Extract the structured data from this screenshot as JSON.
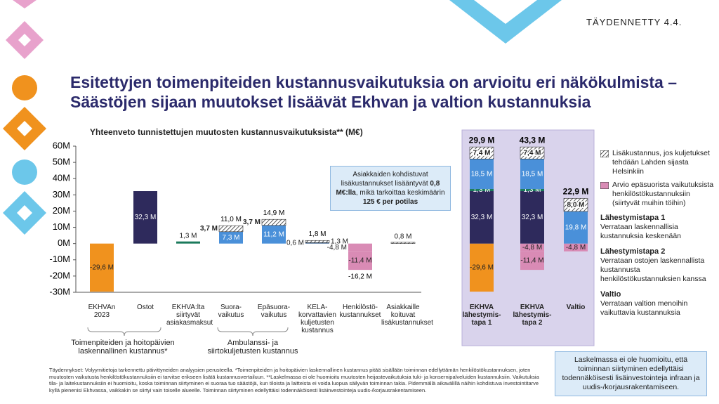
{
  "header": {
    "stamp": "TÄYDENNETTY 4.4.",
    "title": [
      "Esitettyjen toimenpiteiden kustannusvaikutuksia on arvioitu eri näkökulmista –",
      "Säästöjen sijaan muutokset lisäävät Ekhvan ja valtion kustannuksia"
    ]
  },
  "chart_data": {
    "type": "bar",
    "title": "Yhteenveto tunnistettujen muutosten kustannusvaikutuksista** (M€)",
    "ylim": [
      -30,
      60
    ],
    "yticks": [
      {
        "value": -30,
        "label": "-30M"
      },
      {
        "value": -20,
        "label": "-20M"
      },
      {
        "value": -10,
        "label": "-10M"
      },
      {
        "value": 0,
        "label": "0M"
      },
      {
        "value": 10,
        "label": "10M"
      },
      {
        "value": 20,
        "label": "20M"
      },
      {
        "value": 30,
        "label": "30M"
      },
      {
        "value": 40,
        "label": "40M"
      },
      {
        "value": 50,
        "label": "50M"
      },
      {
        "value": 60,
        "label": "60M"
      }
    ],
    "grid": false,
    "bars": [
      {
        "category": "EKHVAn 2023",
        "segments": [
          {
            "value": -29.6,
            "value_label": "-29,6 M",
            "color": "#f0921e"
          }
        ]
      },
      {
        "category": "Ostot",
        "segments": [
          {
            "value": 32.3,
            "value_label": "32,3 M",
            "color": "#2e2a5c"
          }
        ]
      },
      {
        "category": "EKHVA:lta siirtyvät asiakasmaksut",
        "segments": [
          {
            "value": 1.3,
            "value_label": "1,3 M",
            "color": "#1b7a5c"
          }
        ]
      },
      {
        "category": "Suora-vaikutus",
        "segments": [
          {
            "value": 7.3,
            "value_label": "7,3 M",
            "color": "#4a90d9"
          },
          {
            "value": 3.7,
            "value_label": "3,7 M",
            "hatched": true
          }
        ],
        "total": 11.0,
        "total_label": "11,0 M"
      },
      {
        "category": "Epäsuora-vaikutus",
        "segments": [
          {
            "value": 11.2,
            "value_label": "11,2 M",
            "color": "#4a90d9"
          },
          {
            "value": 3.7,
            "value_label": "3,7 M",
            "hatched": true
          }
        ],
        "total": 14.9,
        "total_label": "14,9 M"
      },
      {
        "category": "KELA-korvattavien kuljetusten kustannus",
        "segments": [
          {
            "value": 0.6,
            "value_label": "0,6 M",
            "color": "#3b5f8a"
          },
          {
            "value": 1.3,
            "value_label": "1,3 M",
            "hatched": true
          }
        ],
        "total": 1.8,
        "total_label": "1,8 M"
      },
      {
        "category": "Henkilöstö-kustannukset",
        "segments": [
          {
            "value": -4.8,
            "value_label": "-4,8 M",
            "color": "#d98bb5"
          },
          {
            "value": -11.4,
            "value_label": "-11,4 M",
            "color": "#d98bb5"
          }
        ],
        "total": -16.2,
        "total_label": "-16,2 M"
      },
      {
        "category": "Asiakkaille koituvat lisäkustannukset",
        "segments": [
          {
            "value": 0.8,
            "value_label": "0,8 M",
            "hatched": true
          }
        ]
      },
      {
        "category": "EKHVA lähestymis-tapa 1",
        "segments": [
          {
            "value": -29.6,
            "value_label": "-29,6 M",
            "color": "#f0921e"
          },
          {
            "value": 32.3,
            "value_label": "32,3 M",
            "color": "#2e2a5c"
          },
          {
            "value": 1.3,
            "value_label": "1,3 M",
            "color": "#1b7a5c"
          },
          {
            "value": 18.5,
            "value_label": "18,5 M",
            "color": "#4a90d9"
          },
          {
            "value": 7.4,
            "value_label": "7,4 M",
            "hatched": true
          }
        ],
        "total": 29.9,
        "total_label": "29,9 M"
      },
      {
        "category": "EKHVA lähestymis-tapa 2",
        "segments": [
          {
            "value": -4.8,
            "value_label": "-4,8 M",
            "color": "#d98bb5"
          },
          {
            "value": -11.4,
            "value_label": "-11,4 M",
            "color": "#d98bb5"
          },
          {
            "value": 32.3,
            "value_label": "32,3 M",
            "color": "#2e2a5c"
          },
          {
            "value": 1.3,
            "value_label": "1,3 M",
            "color": "#1b7a5c"
          },
          {
            "value": 18.5,
            "value_label": "18,5 M",
            "color": "#4a90d9"
          },
          {
            "value": 7.4,
            "value_label": "7,4 M",
            "hatched": true
          }
        ],
        "total": 43.3,
        "total_label": "43,3 M"
      },
      {
        "category": "Valtio",
        "segments": [
          {
            "value": -4.8,
            "value_label": "-4,8 M",
            "color": "#d98bb5"
          },
          {
            "value": 19.8,
            "value_label": "19,8 M",
            "color": "#4a90d9"
          },
          {
            "value": 8.0,
            "value_label": "8,0 M",
            "hatched": true
          }
        ],
        "total": 22.9,
        "total_label": "22,9 M"
      }
    ],
    "groups": [
      "Toimenpiteiden ja hoitopäivien laskennallinen kustannus*",
      "Ambulanssi- ja siirtokuljetusten kustannus"
    ],
    "callout": [
      "Asiakkaiden kohdistuvat lisäkustannukset lisääntyvät",
      "0,8 M€:lla",
      ", mikä tarkoittaa keskimäärin",
      "125 € per potilas"
    ],
    "legend": [
      {
        "label": "Lisäkustannus, jos kuljetukset tehdään Lahden sijasta Helsinkiin",
        "hatched": true
      },
      {
        "label": "Arvio epäsuorista vaikutuksista henkilöstökustannuksiin (siirtyvät muihin töihin)",
        "color": "#d98bb5"
      }
    ]
  },
  "approaches": [
    {
      "title": "Lähestymistapa 1",
      "text": "Verrataan laskennallisia kustannuksia keskenään"
    },
    {
      "title": "Lähestymistapa 2",
      "text": "Verrataan ostojen laskennallista kustannusta henkilöstökustannuksien kanssa"
    },
    {
      "title": "Valtio",
      "text": "Verrataan valtion menoihin vaikuttavia kustannuksia"
    }
  ],
  "note": "Laskelmassa ei ole huomioitu, että toiminnan siirtyminen edellyttäisi todennäköisesti lisäinvestointeja infraan ja uudis-/korjausrakentamiseen.",
  "footnote": "Täydennykset: Volyymitietoja tarkennettu päivittyneiden analyysien perusteella. *Toimenpiteiden ja hoitopäivien laskennallinen kustannus pitää sisällään toiminnan edellyttämän henkilöstökustannuksen, joten muutosten vaikutusta henkilöstökustannuksiin ei tarvitse erikseen lisätä kustannusvertailuun. **Laskelmassa ei ole huomioitu muutosten heijastevaikutuksia tuki- ja konsernipalveluiden kustannuksiin. Vaikutuksia tila- ja laitekustannuksiin ei huomioitu, koska toiminnan siirtyminen ei suoraa tuo säästöjä, kun tiloista ja laitteista ei voida luopua säilyvän toiminnan takia. Pidemmällä aikavälillä näihin kohdistuva investointitarve kyllä pienenisi Ekhvassa, vaikkakin se siirtyi vain toiselle alueelle. Toiminnan siirtyminen edellyttäisi todennäköisesti lisäinvestointeja uudis-/korjausrakentamiseen."
}
